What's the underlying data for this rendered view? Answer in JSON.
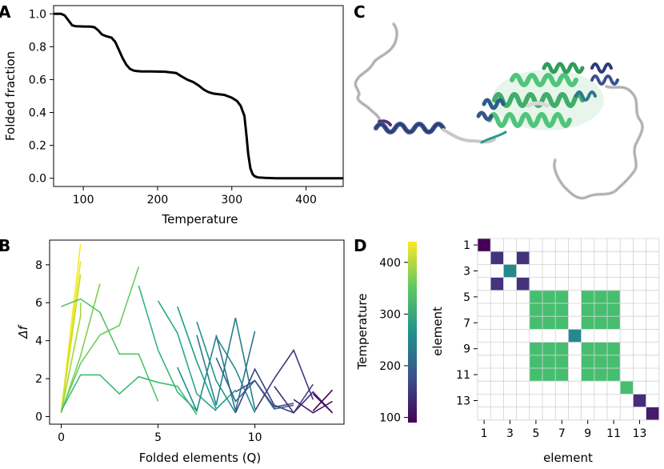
{
  "panels": {
    "a": "A",
    "b": "B",
    "c": "C",
    "d": "D"
  },
  "chart_data": [
    {
      "id": "A",
      "type": "line",
      "xlabel": "Temperature",
      "ylabel": "Folded fraction",
      "xlim": [
        60,
        450
      ],
      "ylim": [
        -0.05,
        1.05
      ],
      "xticks": [
        100,
        200,
        300,
        400
      ],
      "yticks": [
        0.0,
        0.2,
        0.4,
        0.6,
        0.8,
        1.0
      ],
      "ytick_labels": [
        "0.0",
        "0.2",
        "0.4",
        "0.6",
        "0.8",
        "1.0"
      ],
      "series": [
        {
          "name": "folded fraction",
          "x": [
            60,
            70,
            75,
            80,
            85,
            90,
            100,
            110,
            115,
            120,
            125,
            130,
            138,
            143,
            148,
            153,
            158,
            163,
            168,
            172,
            178,
            190,
            210,
            225,
            232,
            240,
            248,
            255,
            262,
            268,
            275,
            290,
            300,
            307,
            312,
            317,
            320,
            322,
            325,
            328,
            331,
            335,
            345,
            360,
            450
          ],
          "y": [
            1.0,
            1.0,
            0.99,
            0.96,
            0.93,
            0.925,
            0.923,
            0.922,
            0.918,
            0.9,
            0.875,
            0.865,
            0.855,
            0.83,
            0.78,
            0.73,
            0.69,
            0.665,
            0.655,
            0.652,
            0.65,
            0.65,
            0.648,
            0.64,
            0.62,
            0.6,
            0.585,
            0.565,
            0.54,
            0.525,
            0.515,
            0.507,
            0.49,
            0.47,
            0.44,
            0.38,
            0.25,
            0.15,
            0.06,
            0.025,
            0.012,
            0.005,
            0.002,
            0.0,
            0.0
          ]
        }
      ]
    },
    {
      "id": "B",
      "type": "line",
      "xlabel": "Folded elements (Q)",
      "ylabel": "Δf",
      "xlim": [
        -0.6,
        14.6
      ],
      "ylim": [
        -0.4,
        9.3
      ],
      "xticks": [
        0,
        5,
        10
      ],
      "yticks": [
        0,
        2,
        4,
        6,
        8
      ],
      "color_scale": {
        "low": 90,
        "high": 440
      },
      "series": [
        {
          "temperature": 440,
          "x": [
            0,
            1
          ],
          "y": [
            0.2,
            9.1
          ]
        },
        {
          "temperature": 430,
          "x": [
            0,
            1
          ],
          "y": [
            0.2,
            8.2
          ]
        },
        {
          "temperature": 410,
          "x": [
            0,
            1
          ],
          "y": [
            0.2,
            7.5
          ]
        },
        {
          "temperature": 390,
          "x": [
            0,
            1,
            1
          ],
          "y": [
            0.2,
            5.3,
            6.0
          ]
        },
        {
          "temperature": 370,
          "x": [
            0,
            1,
            2
          ],
          "y": [
            0.2,
            3.2,
            7.0
          ]
        },
        {
          "temperature": 360,
          "x": [
            0,
            1,
            2,
            3,
            4
          ],
          "y": [
            0.3,
            2.8,
            4.3,
            4.8,
            7.9
          ]
        },
        {
          "temperature": 345,
          "x": [
            0,
            1,
            2,
            3,
            4,
            5
          ],
          "y": [
            5.8,
            6.2,
            5.5,
            3.3,
            3.3,
            0.8
          ]
        },
        {
          "temperature": 330,
          "x": [
            0,
            1,
            2,
            3,
            4,
            5,
            6,
            7
          ],
          "y": [
            0.3,
            2.2,
            2.2,
            1.2,
            2.1,
            1.8,
            1.6,
            0.1
          ]
        },
        {
          "temperature": 320,
          "x": [
            4,
            5,
            6,
            7
          ],
          "y": [
            6.9,
            3.5,
            1.3,
            0.3
          ]
        },
        {
          "temperature": 300,
          "x": [
            5,
            6,
            7,
            8
          ],
          "y": [
            6.1,
            4.4,
            1.2,
            0.3
          ]
        },
        {
          "temperature": 285,
          "x": [
            6,
            7,
            8,
            9
          ],
          "y": [
            5.8,
            2.9,
            0.4,
            1.4
          ]
        },
        {
          "temperature": 270,
          "x": [
            7,
            8,
            9
          ],
          "y": [
            5.0,
            1.9,
            0.2
          ]
        },
        {
          "temperature": 255,
          "x": [
            6,
            7,
            8,
            9,
            10
          ],
          "y": [
            2.6,
            0.3,
            4.2,
            2.5,
            0.2
          ]
        },
        {
          "temperature": 240,
          "x": [
            7,
            8,
            9,
            10
          ],
          "y": [
            4.3,
            0.6,
            5.2,
            0.4
          ]
        },
        {
          "temperature": 225,
          "x": [
            8,
            9,
            10
          ],
          "y": [
            4.3,
            0.3,
            4.5
          ]
        },
        {
          "temperature": 200,
          "x": [
            8,
            9,
            10,
            11,
            12
          ],
          "y": [
            3.1,
            0.8,
            1.9,
            0.4,
            0.6
          ]
        },
        {
          "temperature": 180,
          "x": [
            9,
            10,
            11,
            12
          ],
          "y": [
            1.3,
            1.9,
            0.5,
            0.7
          ]
        },
        {
          "temperature": 160,
          "x": [
            9,
            10,
            11,
            12,
            13
          ],
          "y": [
            0.2,
            2.5,
            0.6,
            0.2,
            1.7
          ]
        },
        {
          "temperature": 145,
          "x": [
            10,
            11,
            12,
            13
          ],
          "y": [
            0.3,
            2.0,
            3.5,
            0.9
          ]
        },
        {
          "temperature": 130,
          "x": [
            11,
            12,
            13,
            14
          ],
          "y": [
            1.6,
            0.2,
            1.3,
            0.2
          ]
        },
        {
          "temperature": 115,
          "x": [
            12,
            13,
            14
          ],
          "y": [
            0.9,
            0.2,
            0.8
          ]
        },
        {
          "temperature": 100,
          "x": [
            13,
            14
          ],
          "y": [
            1.2,
            0.2
          ]
        },
        {
          "temperature": 92,
          "x": [
            13,
            14
          ],
          "y": [
            0.3,
            1.4
          ]
        }
      ]
    },
    {
      "id": "D",
      "type": "heatmap",
      "xlabel": "element",
      "ylabel": "element",
      "size": 14,
      "tick_labels": [
        "1",
        "3",
        "5",
        "7",
        "9",
        "11",
        "13"
      ],
      "tick_positions": [
        1,
        3,
        5,
        7,
        9,
        11,
        13
      ],
      "blocks": [
        {
          "rows": [
            1,
            1
          ],
          "cols": [
            1,
            1
          ],
          "temperature": 90
        },
        {
          "rows": [
            2,
            2
          ],
          "cols": [
            2,
            2
          ],
          "temperature": 140
        },
        {
          "rows": [
            2,
            2
          ],
          "cols": [
            4,
            4
          ],
          "temperature": 140
        },
        {
          "rows": [
            4,
            4
          ],
          "cols": [
            2,
            2
          ],
          "temperature": 140
        },
        {
          "rows": [
            4,
            4
          ],
          "cols": [
            4,
            4
          ],
          "temperature": 140
        },
        {
          "rows": [
            3,
            3
          ],
          "cols": [
            3,
            3
          ],
          "temperature": 255
        },
        {
          "rows": [
            5,
            7
          ],
          "cols": [
            5,
            7
          ],
          "temperature": 335
        },
        {
          "rows": [
            5,
            7
          ],
          "cols": [
            9,
            11
          ],
          "temperature": 335
        },
        {
          "rows": [
            9,
            11
          ],
          "cols": [
            5,
            7
          ],
          "temperature": 335
        },
        {
          "rows": [
            9,
            11
          ],
          "cols": [
            9,
            11
          ],
          "temperature": 335
        },
        {
          "rows": [
            8,
            8
          ],
          "cols": [
            8,
            8
          ],
          "temperature": 255
        },
        {
          "rows": [
            12,
            12
          ],
          "cols": [
            12,
            12
          ],
          "temperature": 335
        },
        {
          "rows": [
            13,
            13
          ],
          "cols": [
            13,
            13
          ],
          "temperature": 135
        },
        {
          "rows": [
            14,
            14
          ],
          "cols": [
            14,
            14
          ],
          "temperature": 115
        }
      ],
      "colorbar": {
        "label": "Temperature",
        "range": [
          90,
          440
        ],
        "ticks": [
          100,
          200,
          300,
          400
        ]
      }
    }
  ]
}
